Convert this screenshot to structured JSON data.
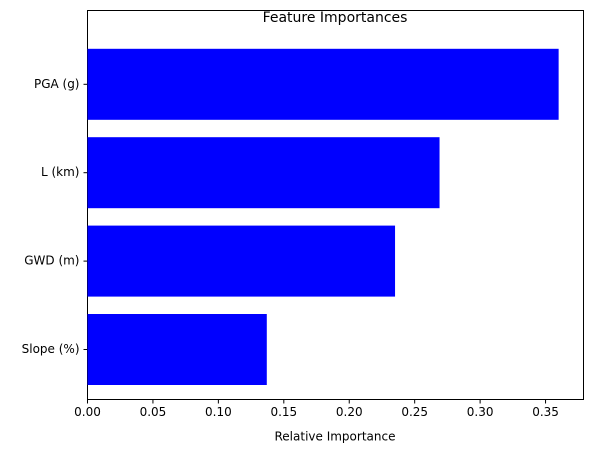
{
  "chart_data": {
    "type": "barh",
    "title": "Feature Importances",
    "x_label": "Relative Importance",
    "categories": [
      "Slope (%)",
      "GWD (m)",
      "L (km)",
      "PGA (g)"
    ],
    "values": [
      0.137,
      0.235,
      0.269,
      0.36
    ],
    "color": "#0000ff",
    "xlim": [
      0,
      0.379
    ],
    "xticks": [
      {
        "value": 0,
        "label": "0.00"
      },
      0.05,
      {
        "value": 0.1,
        "label": "0.10"
      },
      0.15,
      {
        "value": 0.2,
        "label": "0.20"
      },
      0.25,
      {
        "value": 0.3,
        "label": "0.30"
      },
      0.35
    ],
    "grid": false
  }
}
